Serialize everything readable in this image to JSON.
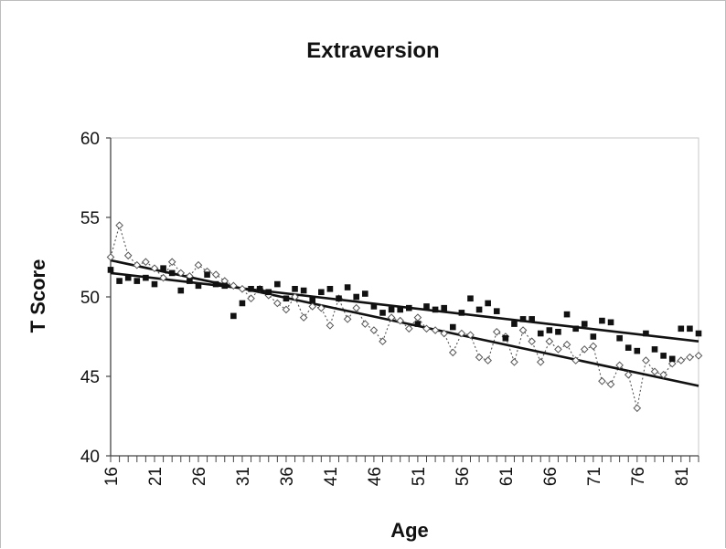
{
  "chart_data": {
    "type": "scatter",
    "title": "Extraversion",
    "xlabel": "Age",
    "ylabel": "T Score",
    "xlim": [
      16,
      83
    ],
    "ylim": [
      40,
      60
    ],
    "x_tick_labels": [
      "16",
      "21",
      "26",
      "31",
      "36",
      "41",
      "46",
      "51",
      "56",
      "61",
      "66",
      "71",
      "76",
      "81"
    ],
    "y_tick_labels": [
      "40",
      "45",
      "50",
      "55",
      "60"
    ],
    "grid": false,
    "legend": "none",
    "colors": {
      "filled": "#111111",
      "open": "#555555",
      "line": "#111111"
    },
    "series": [
      {
        "marker": "filled-square",
        "x": [
          16,
          17,
          18,
          19,
          20,
          21,
          22,
          23,
          24,
          25,
          26,
          27,
          28,
          29,
          30,
          31,
          32,
          33,
          34,
          35,
          36,
          37,
          38,
          39,
          40,
          41,
          42,
          43,
          44,
          45,
          46,
          47,
          48,
          49,
          50,
          51,
          52,
          53,
          54,
          55,
          56,
          57,
          58,
          59,
          60,
          61,
          62,
          63,
          64,
          65,
          66,
          67,
          68,
          69,
          70,
          71,
          72,
          73,
          74,
          75,
          76,
          77,
          78,
          79,
          80,
          81,
          82,
          83
        ],
        "y": [
          51.7,
          51.0,
          51.2,
          51.0,
          51.2,
          50.8,
          51.8,
          51.5,
          50.4,
          51.0,
          50.7,
          51.4,
          50.8,
          50.7,
          48.8,
          49.6,
          50.5,
          50.5,
          50.3,
          50.8,
          49.9,
          50.5,
          50.4,
          49.8,
          50.3,
          50.5,
          49.9,
          50.6,
          50.0,
          50.2,
          49.4,
          49.0,
          49.2,
          49.2,
          49.3,
          48.3,
          49.4,
          49.2,
          49.3,
          48.1,
          49.0,
          49.9,
          49.2,
          49.6,
          49.1,
          47.4,
          48.3,
          48.6,
          48.6,
          47.7,
          47.9,
          47.8,
          48.9,
          48.0,
          48.3,
          47.5,
          48.5,
          48.4,
          47.4,
          46.8,
          46.6,
          47.7,
          46.7,
          46.3,
          46.1,
          48.0,
          48.0,
          47.7
        ]
      },
      {
        "marker": "open-diamond",
        "x": [
          16,
          17,
          18,
          19,
          20,
          21,
          22,
          23,
          24,
          25,
          26,
          27,
          28,
          29,
          30,
          31,
          32,
          33,
          34,
          35,
          36,
          37,
          38,
          39,
          40,
          41,
          42,
          43,
          44,
          45,
          46,
          47,
          48,
          49,
          50,
          51,
          52,
          53,
          54,
          55,
          56,
          57,
          58,
          59,
          60,
          61,
          62,
          63,
          64,
          65,
          66,
          67,
          68,
          69,
          70,
          71,
          72,
          73,
          74,
          75,
          76,
          77,
          78,
          79,
          80,
          81,
          82,
          83
        ],
        "y": [
          52.5,
          54.5,
          52.6,
          52.0,
          52.2,
          51.8,
          51.2,
          52.2,
          51.5,
          51.3,
          52.0,
          51.6,
          51.4,
          51.0,
          50.7,
          50.5,
          49.9,
          50.5,
          50.1,
          49.6,
          49.2,
          50.0,
          48.7,
          49.4,
          49.3,
          48.2,
          49.9,
          48.6,
          49.3,
          48.3,
          47.9,
          47.2,
          48.7,
          48.5,
          48.0,
          48.7,
          48.0,
          47.9,
          47.7,
          46.5,
          47.7,
          47.6,
          46.2,
          46.0,
          47.8,
          47.5,
          45.9,
          47.9,
          47.2,
          45.9,
          47.2,
          46.7,
          47.0,
          46.0,
          46.7,
          46.9,
          44.7,
          44.5,
          45.7,
          45.1,
          43.0,
          46.0,
          45.3,
          45.1,
          45.8,
          46.0,
          46.2,
          46.3
        ]
      }
    ],
    "trendlines": [
      {
        "style": "solid",
        "x": [
          16,
          83
        ],
        "y": [
          51.5,
          47.2
        ]
      },
      {
        "style": "solid",
        "x": [
          16,
          83
        ],
        "y": [
          52.3,
          44.4
        ]
      }
    ]
  }
}
